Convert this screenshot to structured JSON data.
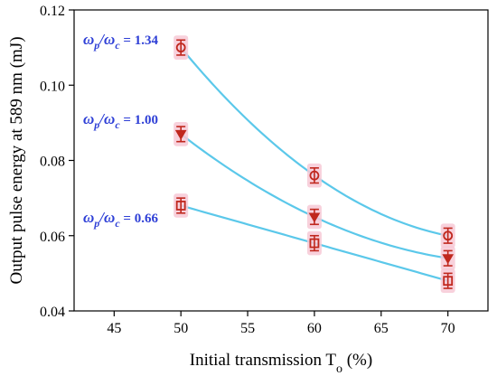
{
  "chart_data": {
    "type": "scatter",
    "xlabel": "Initial transmission T",
    "xlabel_sub": "o",
    "xlabel_unit": " (%)",
    "ylabel": "Output pulse energy at 589 nm (mJ)",
    "xlim": [
      42,
      73
    ],
    "ylim": [
      0.04,
      0.12
    ],
    "xticks": [
      45,
      50,
      55,
      60,
      65,
      70
    ],
    "yticks": [
      0.04,
      0.06,
      0.08,
      0.1,
      0.12
    ],
    "ytick_labels": [
      "0.04",
      "0.06",
      "0.08",
      "0.10",
      "0.12"
    ],
    "grid": false,
    "colors": {
      "marker": "#c0281e",
      "error_bar": "#c0281e",
      "highlight": "#f7c9d6",
      "fit": "#5bc8ea",
      "label": "#2e3fd6"
    },
    "series": [
      {
        "name": "ωp/ωc = 1.34",
        "label_parts": {
          "a": "ω",
          "a_sub": "p",
          "slash": "/",
          "b": "ω",
          "b_sub": "c",
          "value": " = 1.34"
        },
        "marker": "circle",
        "x": [
          50,
          60,
          70
        ],
        "y": [
          0.11,
          0.076,
          0.06
        ],
        "err": [
          0.002,
          0.002,
          0.002
        ]
      },
      {
        "name": "ωp/ωc = 1.00",
        "label_parts": {
          "a": "ω",
          "a_sub": "p",
          "slash": "/",
          "b": "ω",
          "b_sub": "c",
          "value": " = 1.00"
        },
        "marker": "triangle-down",
        "x": [
          50,
          60,
          70
        ],
        "y": [
          0.087,
          0.065,
          0.054
        ],
        "err": [
          0.002,
          0.002,
          0.002
        ]
      },
      {
        "name": "ωp/ωc = 0.66",
        "label_parts": {
          "a": "ω",
          "a_sub": "p",
          "slash": "/",
          "b": "ω",
          "b_sub": "c",
          "value": " = 0.66"
        },
        "marker": "square",
        "x": [
          50,
          60,
          70
        ],
        "y": [
          0.068,
          0.058,
          0.048
        ],
        "err": [
          0.002,
          0.002,
          0.002
        ]
      }
    ]
  }
}
